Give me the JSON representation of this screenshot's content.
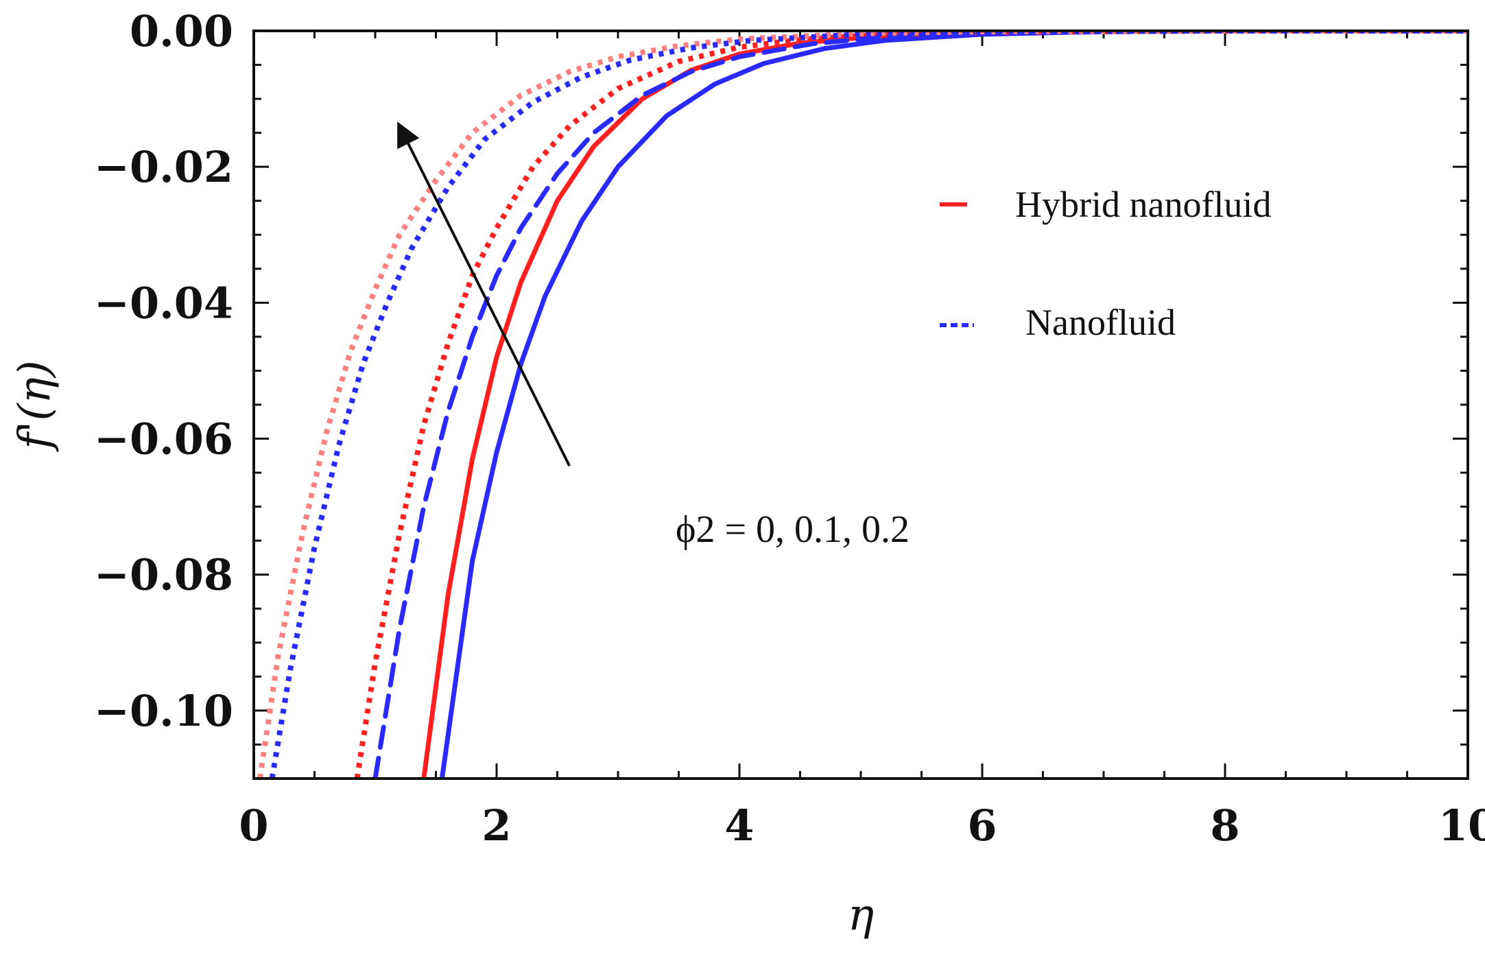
{
  "chart_data": {
    "type": "line",
    "title": "",
    "xlabel": "η",
    "ylabel": "f'(η)",
    "xlim": [
      0,
      10
    ],
    "ylim": [
      -0.11,
      0.0
    ],
    "x_ticks": [
      0,
      2,
      4,
      6,
      8,
      10
    ],
    "x_tick_labels": [
      "0",
      "2",
      "4",
      "6",
      "8",
      "10"
    ],
    "y_ticks": [
      0.0,
      -0.02,
      -0.04,
      -0.06,
      -0.08,
      -0.1
    ],
    "y_tick_labels": [
      "0.00",
      "−0.02",
      "−0.04",
      "−0.06",
      "−0.08",
      "−0.10"
    ],
    "grid": false,
    "legend": {
      "position": "right",
      "entries": [
        {
          "label": "Hybrid nanofluid",
          "color": "#ff2020"
        },
        {
          "label": "Nanofluid",
          "color": "#2a2aff"
        }
      ]
    },
    "annotation": {
      "text": "ϕ2 = 0, 0.1, 0.2",
      "arrow_from": [
        2.6,
        -0.064
      ],
      "arrow_to": [
        1.2,
        -0.014
      ]
    },
    "series": [
      {
        "fluid": "Hybrid nanofluid",
        "phi2": 0,
        "style": "solid",
        "color": "#ff2020",
        "x": [
          1.4,
          1.6,
          1.8,
          2.0,
          2.2,
          2.5,
          2.8,
          3.2,
          3.6,
          4.0,
          4.5,
          5.0,
          6.0,
          7.0,
          8.0,
          10.0
        ],
        "y": [
          -0.11,
          -0.083,
          -0.063,
          -0.048,
          -0.037,
          -0.025,
          -0.017,
          -0.01,
          -0.0058,
          -0.0034,
          -0.0018,
          -0.001,
          -0.0003,
          -0.0001,
          0.0,
          0.0
        ]
      },
      {
        "fluid": "Nanofluid",
        "phi2": 0,
        "style": "solid",
        "color": "#2a2aff",
        "x": [
          1.55,
          1.8,
          2.0,
          2.2,
          2.4,
          2.7,
          3.0,
          3.4,
          3.8,
          4.2,
          4.7,
          5.2,
          6.0,
          7.0,
          8.0,
          10.0
        ],
        "y": [
          -0.11,
          -0.078,
          -0.062,
          -0.049,
          -0.039,
          -0.028,
          -0.02,
          -0.0125,
          -0.0078,
          -0.0048,
          -0.0026,
          -0.0014,
          -0.0005,
          -0.0001,
          0.0,
          0.0
        ]
      },
      {
        "fluid": "Hybrid nanofluid",
        "phi2": 0.1,
        "style": "dotted",
        "color": "#ff2020",
        "x": [
          0.85,
          1.0,
          1.2,
          1.4,
          1.6,
          1.8,
          2.0,
          2.3,
          2.6,
          3.0,
          3.5,
          4.0,
          4.5,
          5.0,
          6.0,
          8.0,
          10.0
        ],
        "y": [
          -0.11,
          -0.093,
          -0.074,
          -0.058,
          -0.046,
          -0.036,
          -0.029,
          -0.02,
          -0.014,
          -0.0085,
          -0.0045,
          -0.0024,
          -0.0013,
          -0.0007,
          -0.0002,
          0.0,
          0.0
        ]
      },
      {
        "fluid": "Nanofluid",
        "phi2": 0.1,
        "style": "dashed",
        "color": "#2a2aff",
        "x": [
          1.0,
          1.2,
          1.4,
          1.6,
          1.8,
          2.0,
          2.2,
          2.5,
          2.8,
          3.2,
          3.6,
          4.0,
          4.6,
          5.2,
          6.0,
          8.0,
          10.0
        ],
        "y": [
          -0.11,
          -0.088,
          -0.07,
          -0.056,
          -0.045,
          -0.036,
          -0.029,
          -0.021,
          -0.015,
          -0.0095,
          -0.006,
          -0.0038,
          -0.0019,
          -0.0009,
          -0.0003,
          0.0,
          0.0
        ]
      },
      {
        "fluid": "Hybrid nanofluid",
        "phi2": 0.2,
        "style": "dotted",
        "color": "#ff8080",
        "x": [
          0.05,
          0.2,
          0.4,
          0.6,
          0.8,
          1.0,
          1.2,
          1.5,
          1.8,
          2.2,
          2.6,
          3.0,
          3.5,
          4.0,
          5.0,
          6.0,
          8.0,
          10.0
        ],
        "y": [
          -0.11,
          -0.092,
          -0.074,
          -0.059,
          -0.047,
          -0.038,
          -0.03,
          -0.022,
          -0.015,
          -0.0095,
          -0.006,
          -0.0038,
          -0.0022,
          -0.0012,
          -0.0004,
          -0.0001,
          0.0,
          0.0
        ]
      },
      {
        "fluid": "Nanofluid",
        "phi2": 0.2,
        "style": "dotted",
        "color": "#2a2aff",
        "x": [
          0.15,
          0.3,
          0.5,
          0.7,
          0.9,
          1.1,
          1.3,
          1.6,
          1.9,
          2.3,
          2.7,
          3.1,
          3.6,
          4.1,
          5.0,
          6.0,
          8.0,
          10.0
        ],
        "y": [
          -0.11,
          -0.094,
          -0.076,
          -0.061,
          -0.049,
          -0.04,
          -0.032,
          -0.023,
          -0.016,
          -0.0105,
          -0.0068,
          -0.0043,
          -0.0025,
          -0.0014,
          -0.0005,
          -0.0001,
          0.0,
          0.0
        ]
      }
    ]
  }
}
